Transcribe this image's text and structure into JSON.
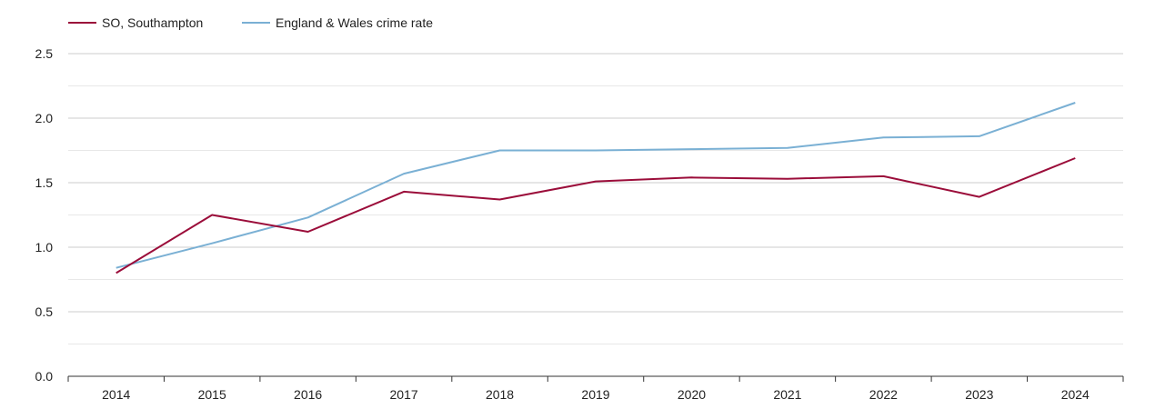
{
  "chart_data": {
    "type": "line",
    "x": [
      "2014",
      "2015",
      "2016",
      "2017",
      "2018",
      "2019",
      "2020",
      "2021",
      "2022",
      "2023",
      "2024"
    ],
    "series": [
      {
        "name": "SO, Southampton",
        "color": "#9b0d3a",
        "values": [
          0.8,
          1.25,
          1.12,
          1.43,
          1.37,
          1.51,
          1.54,
          1.53,
          1.55,
          1.39,
          1.69
        ]
      },
      {
        "name": "England & Wales crime rate",
        "color": "#7ab0d4",
        "values": [
          0.84,
          1.03,
          1.23,
          1.57,
          1.75,
          1.75,
          1.76,
          1.77,
          1.85,
          1.86,
          2.12
        ]
      }
    ],
    "ylim": [
      0,
      2.5
    ],
    "yticks": [
      "0.0",
      "0.5",
      "1.0",
      "1.5",
      "2.0",
      "2.5"
    ],
    "grid": true,
    "legend": "top-left",
    "title": "",
    "xlabel": "",
    "ylabel": ""
  }
}
